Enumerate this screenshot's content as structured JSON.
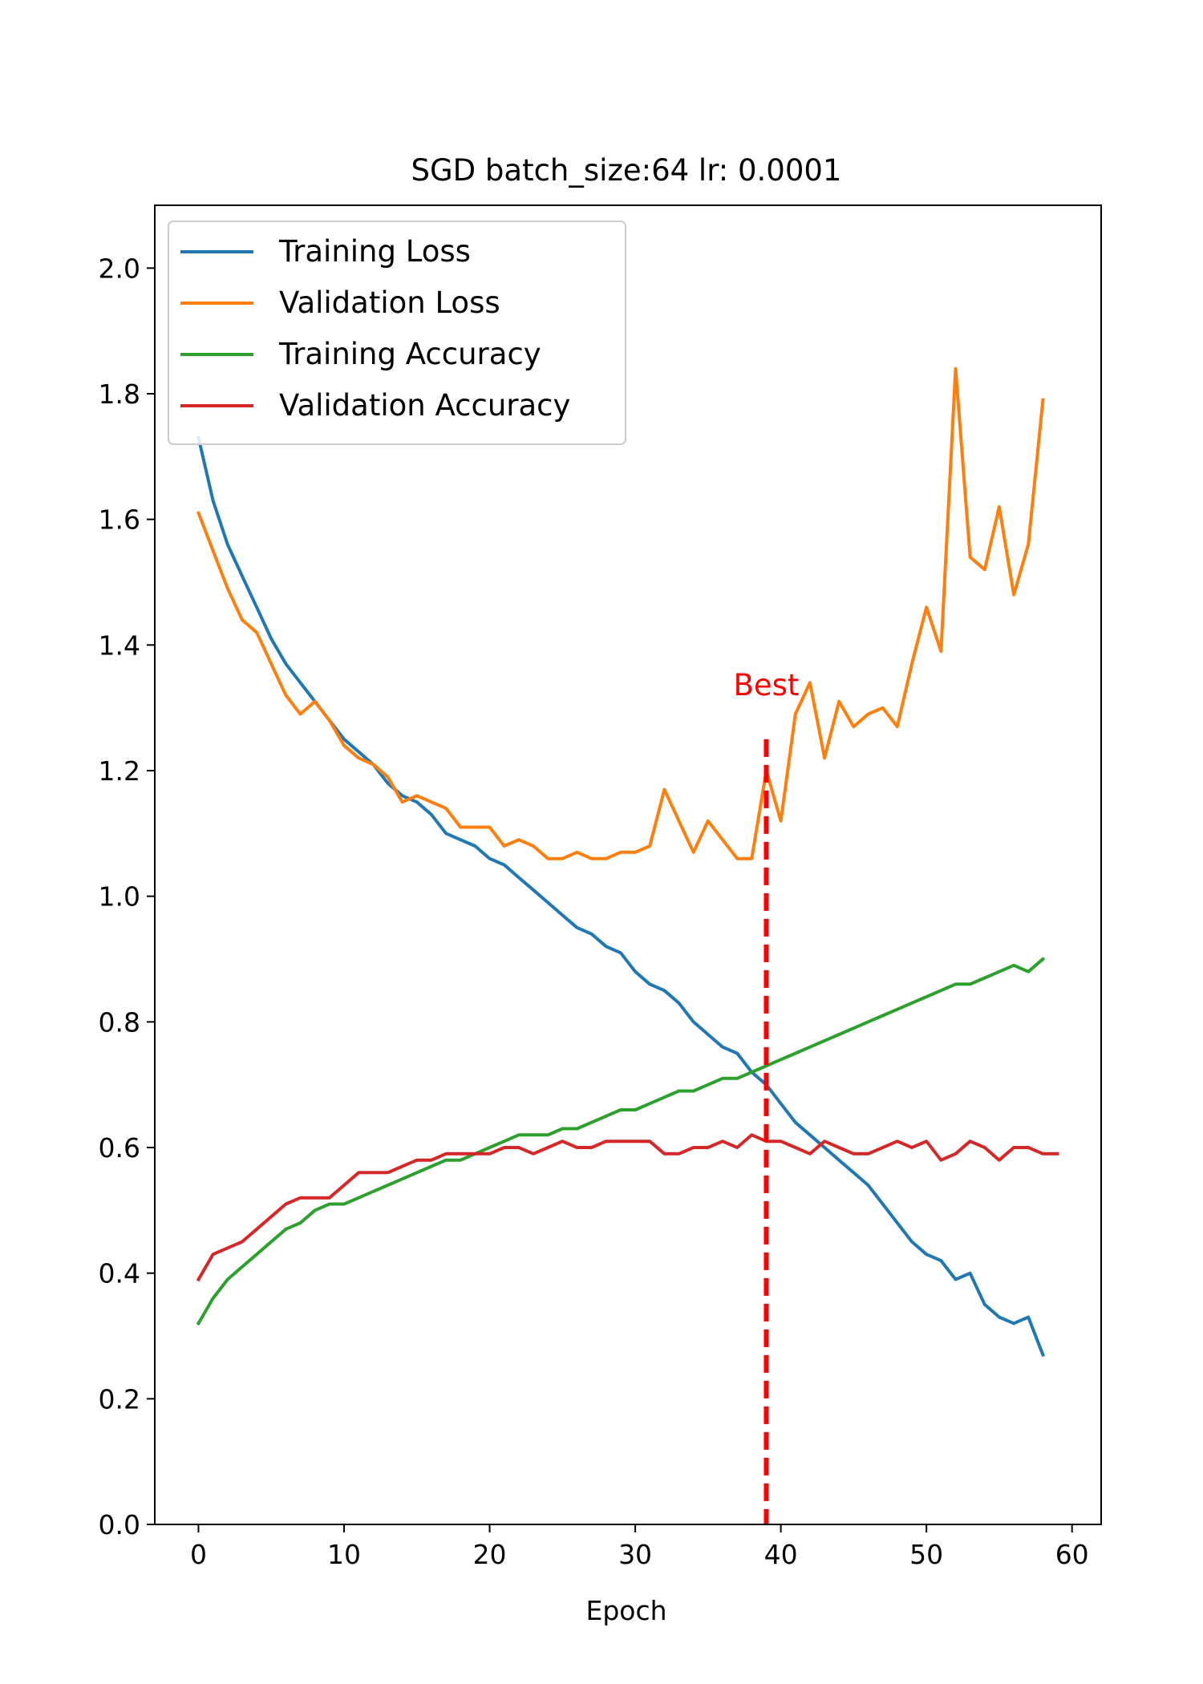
{
  "chart_data": {
    "type": "line",
    "title": "SGD batch_size:64 lr: 0.0001",
    "xlabel": "Epoch",
    "ylabel": "",
    "xlim": [
      -3,
      62
    ],
    "ylim": [
      0.0,
      2.1
    ],
    "xticks": [
      0,
      10,
      20,
      30,
      40,
      50,
      60
    ],
    "yticks": [
      0.0,
      0.2,
      0.4,
      0.6,
      0.8,
      1.0,
      1.2,
      1.4,
      1.6,
      1.8,
      2.0
    ],
    "xtick_labels": [
      "0",
      "10",
      "20",
      "30",
      "40",
      "50",
      "60"
    ],
    "ytick_labels": [
      "0.0",
      "0.2",
      "0.4",
      "0.6",
      "0.8",
      "1.0",
      "1.2",
      "1.4",
      "1.6",
      "1.8",
      "2.0"
    ],
    "grid": false,
    "legend_position": "top-left",
    "series": [
      {
        "name": "Training Loss",
        "color": "#1f77b4",
        "x": [
          0,
          1,
          2,
          3,
          4,
          5,
          6,
          7,
          8,
          9,
          10,
          11,
          12,
          13,
          14,
          15,
          16,
          17,
          18,
          19,
          20,
          21,
          22,
          23,
          24,
          25,
          26,
          27,
          28,
          29,
          30,
          31,
          32,
          33,
          34,
          35,
          36,
          37,
          38,
          39,
          40,
          41,
          42,
          43,
          44,
          45,
          46,
          47,
          48,
          49,
          50,
          51,
          52,
          53,
          54,
          55,
          56,
          57,
          58
        ],
        "values": [
          1.73,
          1.63,
          1.56,
          1.51,
          1.46,
          1.41,
          1.37,
          1.34,
          1.31,
          1.28,
          1.25,
          1.23,
          1.21,
          1.18,
          1.16,
          1.15,
          1.13,
          1.1,
          1.09,
          1.08,
          1.06,
          1.05,
          1.03,
          1.01,
          0.99,
          0.97,
          0.95,
          0.94,
          0.92,
          0.91,
          0.88,
          0.86,
          0.85,
          0.83,
          0.8,
          0.78,
          0.76,
          0.75,
          0.72,
          0.7,
          0.67,
          0.64,
          0.62,
          0.6,
          0.58,
          0.56,
          0.54,
          0.51,
          0.48,
          0.45,
          0.43,
          0.42,
          0.39,
          0.4,
          0.35,
          0.33,
          0.32,
          0.33,
          0.27
        ]
      },
      {
        "name": "Validation Loss",
        "color": "#ff7f0e",
        "x": [
          0,
          1,
          2,
          3,
          4,
          5,
          6,
          7,
          8,
          9,
          10,
          11,
          12,
          13,
          14,
          15,
          16,
          17,
          18,
          19,
          20,
          21,
          22,
          23,
          24,
          25,
          26,
          27,
          28,
          29,
          30,
          31,
          32,
          33,
          34,
          35,
          36,
          37,
          38,
          39,
          40,
          41,
          42,
          43,
          44,
          45,
          46,
          47,
          48,
          49,
          50,
          51,
          52,
          53,
          54,
          55,
          56,
          57,
          58
        ],
        "values": [
          1.61,
          1.55,
          1.49,
          1.44,
          1.42,
          1.37,
          1.32,
          1.29,
          1.31,
          1.28,
          1.24,
          1.22,
          1.21,
          1.19,
          1.15,
          1.16,
          1.15,
          1.14,
          1.11,
          1.11,
          1.11,
          1.08,
          1.09,
          1.08,
          1.06,
          1.06,
          1.07,
          1.06,
          1.06,
          1.07,
          1.07,
          1.08,
          1.17,
          1.12,
          1.07,
          1.12,
          1.09,
          1.06,
          1.06,
          1.2,
          1.12,
          1.29,
          1.34,
          1.22,
          1.31,
          1.27,
          1.29,
          1.3,
          1.27,
          1.37,
          1.46,
          1.39,
          1.84,
          1.54,
          1.52,
          1.62,
          1.48,
          1.56,
          1.79
        ]
      },
      {
        "name": "Training Accuracy",
        "color": "#2ca02c",
        "x": [
          0,
          1,
          2,
          3,
          4,
          5,
          6,
          7,
          8,
          9,
          10,
          11,
          12,
          13,
          14,
          15,
          16,
          17,
          18,
          19,
          20,
          21,
          22,
          23,
          24,
          25,
          26,
          27,
          28,
          29,
          30,
          31,
          32,
          33,
          34,
          35,
          36,
          37,
          38,
          39,
          40,
          41,
          42,
          43,
          44,
          45,
          46,
          47,
          48,
          49,
          50,
          51,
          52,
          53,
          54,
          55,
          56,
          57,
          58
        ],
        "values": [
          0.32,
          0.36,
          0.39,
          0.41,
          0.43,
          0.45,
          0.47,
          0.48,
          0.5,
          0.51,
          0.51,
          0.52,
          0.53,
          0.54,
          0.55,
          0.56,
          0.57,
          0.58,
          0.58,
          0.59,
          0.6,
          0.61,
          0.62,
          0.62,
          0.62,
          0.63,
          0.63,
          0.64,
          0.65,
          0.66,
          0.66,
          0.67,
          0.68,
          0.69,
          0.69,
          0.7,
          0.71,
          0.71,
          0.72,
          0.73,
          0.74,
          0.75,
          0.76,
          0.77,
          0.78,
          0.79,
          0.8,
          0.81,
          0.82,
          0.83,
          0.84,
          0.85,
          0.86,
          0.86,
          0.87,
          0.88,
          0.89,
          0.88,
          0.9
        ]
      },
      {
        "name": "Validation Accuracy",
        "color": "#d62728",
        "x": [
          0,
          1,
          2,
          3,
          4,
          5,
          6,
          7,
          8,
          9,
          10,
          11,
          12,
          13,
          14,
          15,
          16,
          17,
          18,
          19,
          20,
          21,
          22,
          23,
          24,
          25,
          26,
          27,
          28,
          29,
          30,
          31,
          32,
          33,
          34,
          35,
          36,
          37,
          38,
          39,
          40,
          41,
          42,
          43,
          44,
          45,
          46,
          47,
          48,
          49,
          50,
          51,
          52,
          53,
          54,
          55,
          56,
          57,
          58,
          59
        ],
        "values": [
          0.39,
          0.43,
          0.44,
          0.45,
          0.47,
          0.49,
          0.51,
          0.52,
          0.52,
          0.52,
          0.54,
          0.56,
          0.56,
          0.56,
          0.57,
          0.58,
          0.58,
          0.59,
          0.59,
          0.59,
          0.59,
          0.6,
          0.6,
          0.59,
          0.6,
          0.61,
          0.6,
          0.6,
          0.61,
          0.61,
          0.61,
          0.61,
          0.59,
          0.59,
          0.6,
          0.6,
          0.61,
          0.6,
          0.62,
          0.61,
          0.61,
          0.6,
          0.59,
          0.61,
          0.6,
          0.59,
          0.59,
          0.6,
          0.61,
          0.6,
          0.61,
          0.58,
          0.59,
          0.61,
          0.6,
          0.58,
          0.6,
          0.6,
          0.59,
          0.59
        ]
      }
    ],
    "annotations": [
      {
        "type": "vline",
        "x": 39,
        "y_top": 1.25,
        "color": "#ff0000",
        "style": "dashed",
        "label": "Best"
      }
    ]
  }
}
